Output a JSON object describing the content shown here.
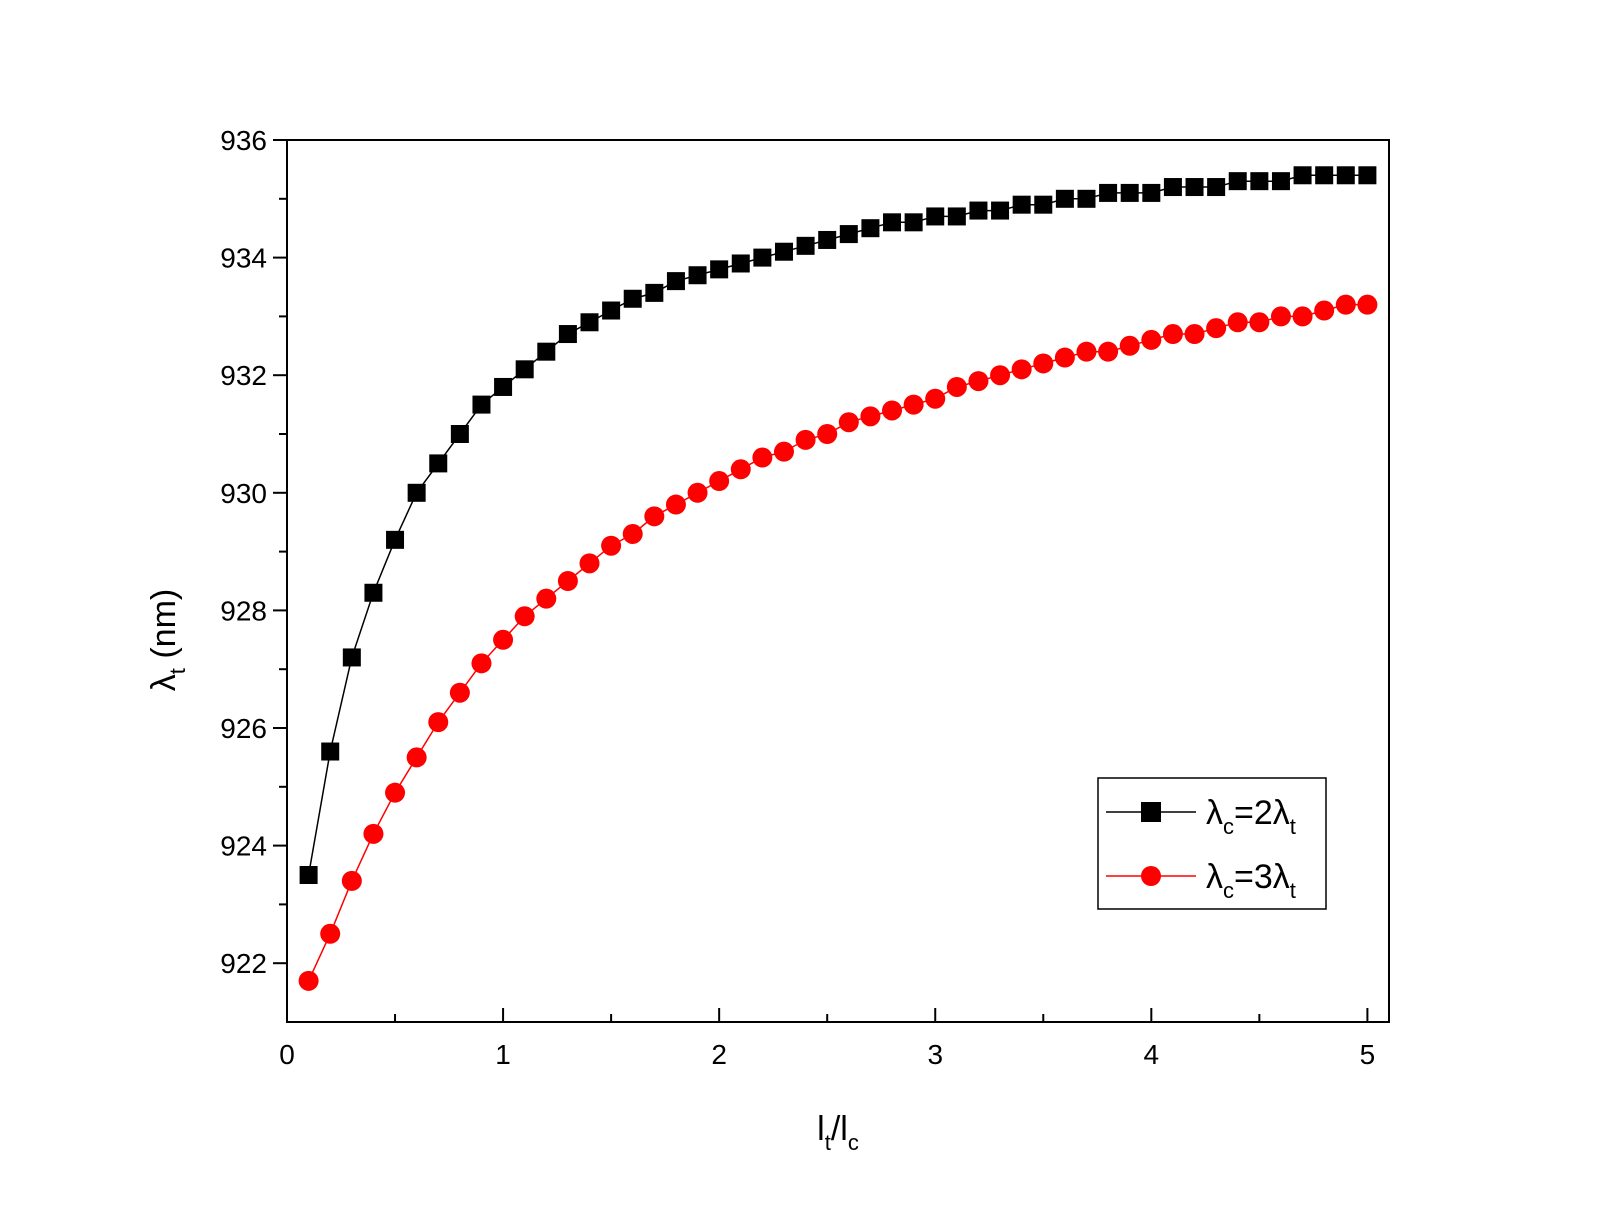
{
  "chart_data": {
    "type": "line",
    "xlabel": {
      "main": "l",
      "sub1": "t",
      "slash": "/l",
      "sub2": "c"
    },
    "ylabel": {
      "main": "λ",
      "sub": "t",
      "unit": " (nm)"
    },
    "xlim": [
      0,
      5.1
    ],
    "ylim": [
      921,
      936
    ],
    "xticks": [
      "0",
      "1",
      "2",
      "3",
      "4",
      "5"
    ],
    "yticks": [
      "922",
      "924",
      "926",
      "928",
      "930",
      "932",
      "934",
      "936"
    ],
    "legend_position": "lower-right",
    "series": [
      {
        "legend": {
          "a": "λ",
          "sub_a": "c",
          "mid": "=2λ",
          "sub_b": "t"
        },
        "color": "#000000",
        "marker": "square",
        "x": [
          0.1,
          0.2,
          0.3,
          0.4,
          0.5,
          0.6,
          0.7,
          0.8,
          0.9,
          1.0,
          1.1,
          1.2,
          1.3,
          1.4,
          1.5,
          1.6,
          1.7,
          1.8,
          1.9,
          2.0,
          2.1,
          2.2,
          2.3,
          2.4,
          2.5,
          2.6,
          2.7,
          2.8,
          2.9,
          3.0,
          3.1,
          3.2,
          3.3,
          3.4,
          3.5,
          3.6,
          3.7,
          3.8,
          3.9,
          4.0,
          4.1,
          4.2,
          4.3,
          4.4,
          4.5,
          4.6,
          4.7,
          4.8,
          4.9,
          5.0
        ],
        "y": [
          923.5,
          925.6,
          927.2,
          928.3,
          929.2,
          930.0,
          930.5,
          931.0,
          931.5,
          931.8,
          932.1,
          932.4,
          932.7,
          932.9,
          933.1,
          933.3,
          933.4,
          933.6,
          933.7,
          933.8,
          933.9,
          934.0,
          934.1,
          934.2,
          934.3,
          934.4,
          934.5,
          934.6,
          934.6,
          934.7,
          934.7,
          934.8,
          934.8,
          934.9,
          934.9,
          935.0,
          935.0,
          935.1,
          935.1,
          935.1,
          935.2,
          935.2,
          935.2,
          935.3,
          935.3,
          935.3,
          935.4,
          935.4,
          935.4,
          935.4
        ]
      },
      {
        "legend": {
          "a": "λ",
          "sub_a": "c",
          "mid": "=3λ",
          "sub_b": "t"
        },
        "color": "#ff0000",
        "marker": "circle",
        "x": [
          0.1,
          0.2,
          0.3,
          0.4,
          0.5,
          0.6,
          0.7,
          0.8,
          0.9,
          1.0,
          1.1,
          1.2,
          1.3,
          1.4,
          1.5,
          1.6,
          1.7,
          1.8,
          1.9,
          2.0,
          2.1,
          2.2,
          2.3,
          2.4,
          2.5,
          2.6,
          2.7,
          2.8,
          2.9,
          3.0,
          3.1,
          3.2,
          3.3,
          3.4,
          3.5,
          3.6,
          3.7,
          3.8,
          3.9,
          4.0,
          4.1,
          4.2,
          4.3,
          4.4,
          4.5,
          4.6,
          4.7,
          4.8,
          4.9,
          5.0
        ],
        "y": [
          921.7,
          922.5,
          923.4,
          924.2,
          924.9,
          925.5,
          926.1,
          926.6,
          927.1,
          927.5,
          927.9,
          928.2,
          928.5,
          928.8,
          929.1,
          929.3,
          929.6,
          929.8,
          930.0,
          930.2,
          930.4,
          930.6,
          930.7,
          930.9,
          931.0,
          931.2,
          931.3,
          931.4,
          931.5,
          931.6,
          931.8,
          931.9,
          932.0,
          932.1,
          932.2,
          932.3,
          932.4,
          932.4,
          932.5,
          932.6,
          932.7,
          932.7,
          932.8,
          932.9,
          932.9,
          933.0,
          933.0,
          933.1,
          933.2,
          933.2
        ]
      }
    ]
  }
}
